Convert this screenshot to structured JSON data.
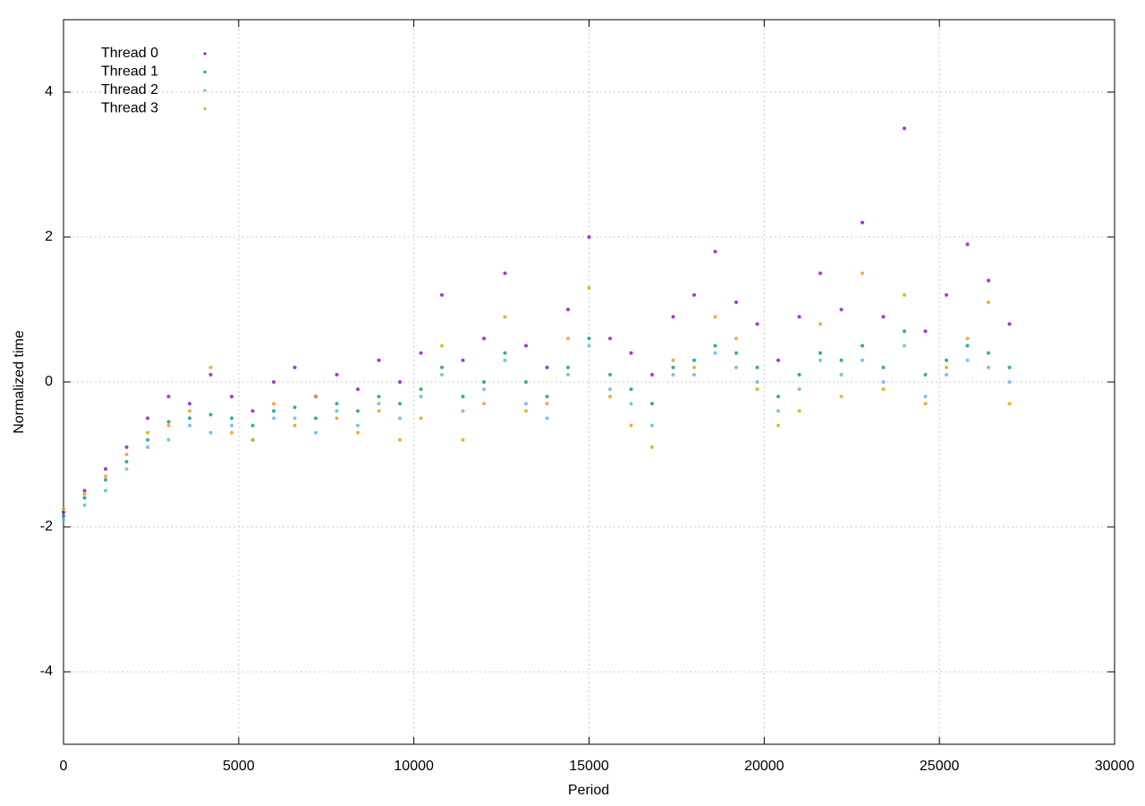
{
  "chart_data": {
    "type": "scatter",
    "xlabel": "Period",
    "ylabel": "Normalized time",
    "xlim": [
      0,
      30000
    ],
    "ylim": [
      -5,
      5
    ],
    "xticks": [
      0,
      5000,
      10000,
      15000,
      20000,
      25000,
      30000
    ],
    "yticks": [
      -4,
      -2,
      0,
      2,
      4
    ],
    "grid": true,
    "legend": "top-left",
    "x": [
      0,
      600,
      1200,
      1800,
      2400,
      3000,
      3600,
      4200,
      4800,
      5400,
      6000,
      6600,
      7200,
      7800,
      8400,
      9000,
      9600,
      10200,
      10800,
      11400,
      12000,
      12600,
      13200,
      13800,
      14400,
      15000,
      15600,
      16200,
      16800,
      17400,
      18000,
      18600,
      19200,
      19800,
      20400,
      21000,
      21600,
      22200,
      22800,
      23400,
      24000,
      24600,
      25200,
      25800,
      26400,
      27000
    ],
    "series": [
      {
        "name": "Thread 0",
        "color": "#9400d3",
        "values": [
          -1.8,
          -1.5,
          -1.2,
          -0.9,
          -0.5,
          -0.2,
          -0.3,
          0.1,
          -0.2,
          -0.4,
          0.0,
          0.2,
          -0.2,
          0.1,
          -0.1,
          0.3,
          0.0,
          0.4,
          1.2,
          0.3,
          0.6,
          1.5,
          0.5,
          0.2,
          1.0,
          2.0,
          0.6,
          0.4,
          0.1,
          0.9,
          1.2,
          1.8,
          1.1,
          0.8,
          0.3,
          0.9,
          1.5,
          1.0,
          2.2,
          0.9,
          3.5,
          0.7,
          1.2,
          1.9,
          1.4,
          0.8
        ]
      },
      {
        "name": "Thread 1",
        "color": "#009e73",
        "values": [
          -1.85,
          -1.6,
          -1.35,
          -1.1,
          -0.8,
          -0.55,
          -0.5,
          -0.45,
          -0.5,
          -0.6,
          -0.4,
          -0.35,
          -0.5,
          -0.3,
          -0.4,
          -0.2,
          -0.3,
          -0.1,
          0.2,
          -0.2,
          0.0,
          0.4,
          0.0,
          -0.2,
          0.2,
          0.6,
          0.1,
          -0.1,
          -0.3,
          0.2,
          0.3,
          0.5,
          0.4,
          0.2,
          -0.2,
          0.1,
          0.4,
          0.3,
          0.5,
          0.2,
          0.7,
          0.1,
          0.3,
          0.5,
          0.4,
          0.2
        ]
      },
      {
        "name": "Thread 2",
        "color": "#56b4e9",
        "values": [
          -1.9,
          -1.7,
          -1.5,
          -1.2,
          -0.9,
          -0.8,
          -0.6,
          -0.7,
          -0.6,
          -0.8,
          -0.5,
          -0.5,
          -0.7,
          -0.4,
          -0.6,
          -0.3,
          -0.5,
          -0.2,
          0.1,
          -0.4,
          -0.1,
          0.3,
          -0.3,
          -0.5,
          0.1,
          0.5,
          -0.1,
          -0.3,
          -0.6,
          0.1,
          0.1,
          0.4,
          0.2,
          0.0,
          -0.4,
          -0.1,
          0.3,
          0.1,
          0.3,
          0.0,
          0.5,
          -0.2,
          0.1,
          0.3,
          0.2,
          0.0
        ]
      },
      {
        "name": "Thread 3",
        "color": "#e69f00",
        "values": [
          -1.75,
          -1.55,
          -1.3,
          -1.0,
          -0.7,
          -0.6,
          -0.4,
          0.2,
          -0.7,
          -0.8,
          -0.3,
          -0.6,
          -0.2,
          -0.5,
          -0.7,
          -0.4,
          -0.8,
          -0.5,
          0.5,
          -0.8,
          -0.3,
          0.9,
          -0.4,
          -0.3,
          0.6,
          1.3,
          -0.2,
          -0.6,
          -0.9,
          0.3,
          0.2,
          0.9,
          0.6,
          -0.1,
          -0.6,
          -0.4,
          0.8,
          -0.2,
          1.5,
          -0.1,
          1.2,
          -0.3,
          0.2,
          0.6,
          1.1,
          -0.3
        ]
      }
    ]
  }
}
